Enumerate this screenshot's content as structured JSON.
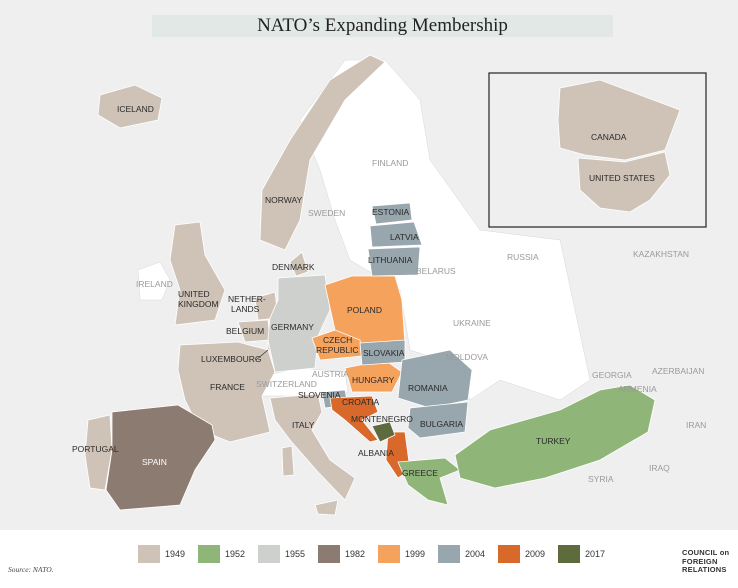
{
  "title": "NATO’s Expanding Membership",
  "colors": {
    "y1949": "#cfc3b8",
    "y1952": "#8fb578",
    "y1955": "#cdd0cc",
    "y1982": "#8c7b70",
    "y1999": "#f5a25d",
    "y2004": "#98a6ad",
    "y2009": "#d9692b",
    "y2017": "#5e6b3d",
    "nonmember": "#ffffff",
    "background": "#efefef"
  },
  "legend": [
    {
      "label": "1949",
      "color": "#cfc3b8"
    },
    {
      "label": "1952",
      "color": "#8fb578"
    },
    {
      "label": "1955",
      "color": "#cdd0cc"
    },
    {
      "label": "1982",
      "color": "#8c7b70"
    },
    {
      "label": "1999",
      "color": "#f5a25d"
    },
    {
      "label": "2004",
      "color": "#98a6ad"
    },
    {
      "label": "2009",
      "color": "#d9692b"
    },
    {
      "label": "2017",
      "color": "#5e6b3d"
    }
  ],
  "members": {
    "iceland": "ICELAND",
    "norway": "NORWAY",
    "denmark": "DENMARK",
    "united_kingdom": [
      "UNITED",
      "KINGDOM"
    ],
    "netherlands": [
      "NETHER-",
      "LANDS"
    ],
    "belgium": "BELGIUM",
    "luxembourg": "LUXEMBOURG",
    "france": "FRANCE",
    "portugal": "PORTUGAL",
    "italy": "ITALY",
    "canada": "CANADA",
    "united_states": "UNITED STATES",
    "greece": "GREECE",
    "turkey": "TURKEY",
    "germany": "GERMANY",
    "spain": "SPAIN",
    "poland": "POLAND",
    "czech_republic": [
      "CZECH",
      "REPUBLIC"
    ],
    "hungary": "HUNGARY",
    "estonia": "ESTONIA",
    "latvia": "LATVIA",
    "lithuania": "LITHUANIA",
    "slovakia": "SLOVAKIA",
    "slovenia": "SLOVENIA",
    "romania": "ROMANIA",
    "bulgaria": "BULGARIA",
    "croatia": "CROATIA",
    "albania": "ALBANIA",
    "montenegro": "MONTENEGRO"
  },
  "nonmembers": {
    "finland": "FINLAND",
    "sweden": "SWEDEN",
    "ireland": "IRELAND",
    "belarus": "BELARUS",
    "ukraine": "UKRAINE",
    "moldova": "MOLDOVA",
    "austria": "AUSTRIA",
    "switzerland": "SWITZERLAND",
    "russia": "RUSSIA",
    "kazakhstan": "KAZAKHSTAN",
    "georgia": "GEORGIA",
    "armenia": "ARMENIA",
    "azerbaijan": "AZERBAIJAN",
    "iran": "IRAN",
    "iraq": "IRAQ",
    "syria": "SYRIA"
  },
  "source": "Source: NATO.",
  "logo_text": [
    "COUNCIL on",
    "FOREIGN",
    "RELATIONS"
  ]
}
